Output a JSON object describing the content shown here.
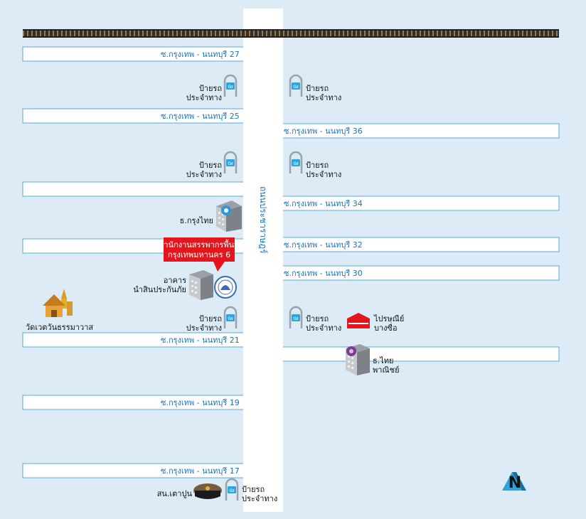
{
  "map": {
    "colors": {
      "background": "#dcebf6",
      "road": "#ffffff",
      "road_edge": "#5aa9d6",
      "road_text": "#1a73b8",
      "accent_red": "#e3161d",
      "text": "#111111"
    },
    "main_road_label": "ถนนประชาราษฎร์",
    "soi_left": {
      "s27": "ซ.กรุงเทพ - นนทบุรี 27",
      "s25": "ซ.กรุงเทพ - นนทบุรี 25",
      "s21": "ซ.กรุงเทพ - นนทบุรี 21",
      "s19": "ซ.กรุงเทพ - นนทบุรี 19",
      "s17": "ซ.กรุงเทพ - นนทบุรี 17"
    },
    "soi_right": {
      "s36": "ซ.กรุงเทพ - นนทบุรี 36",
      "s34": "ซ.กรุงเทพ - นนทบุรี 34",
      "s32": "ซ.กรุงเทพ - นนทบุรี 32",
      "s30": "ซ.กรุงเทพ - นนทบุรี 30"
    },
    "bus_stop": {
      "line1": "ป้ายรถ",
      "line2": "ประจำทาง",
      "sign_text": "บัส"
    },
    "landmarks": {
      "krungthai_bank": "ธ.กรุงไทย",
      "callout_line1": "สำนักงานสรรพากรพื้นที่",
      "callout_line2": "กรุงเทพมหานคร 6",
      "building_line1": "อาคาร",
      "building_line2": "นำสินประกันภัย",
      "temple": "วัดเวตวันธรรมาวาส",
      "post_office_line1": "ไปรษณีย์",
      "post_office_line2": "บางซื่อ",
      "scb_line1": "ธ.ไทย",
      "scb_line2": "พาณิชย์",
      "police": "สน.เตาปูน"
    },
    "compass": "N"
  }
}
